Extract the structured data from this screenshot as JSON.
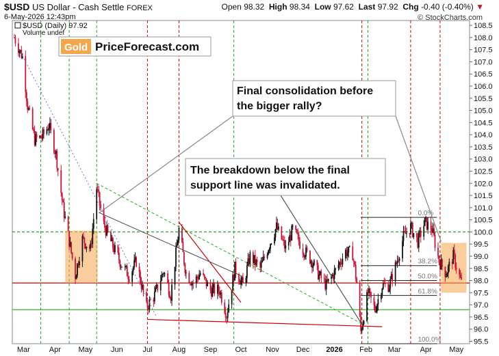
{
  "header": {
    "symbol": "$USD",
    "description": "US Dollar - Cash Settle",
    "exchange": "FOREX",
    "datetime": "6-May-2026 12:43pm",
    "open_label": "Open",
    "open": "98.32",
    "high_label": "High",
    "high": "98.34",
    "low_label": "Low",
    "low": "97.62",
    "last_label": "Last",
    "last": "97.92",
    "chg_label": "Chg",
    "chg": "-0.40 (-0.40%)",
    "brand": "© StockCharts.com"
  },
  "legend": {
    "series": "$USD (Daily) 97.92",
    "volume": "Volume undef"
  },
  "logo": {
    "gold": "Gold",
    "site": "PriceForecast.com"
  },
  "annotations": {
    "consolidation_line1": "Final consolidation before",
    "consolidation_line2": "the bigger rally?",
    "breakdown_line1": "The breakdown below the final",
    "breakdown_line2": "support line was invalidated."
  },
  "fib_labels": [
    "0.0%",
    "38.2%",
    "50.0%",
    "61.8%",
    "100.0%"
  ],
  "colors": {
    "up": "#111111",
    "down": "#cc1133",
    "orange": "#f5a54a",
    "green_grid": "#22aa22",
    "red_grid": "#cc0000"
  },
  "chart_data": {
    "type": "candlestick",
    "title": "$USD US Dollar - Cash Settle FOREX",
    "series_name": "$USD (Daily)",
    "ylim": [
      95.4,
      108.7
    ],
    "y_ticks": [
      "108.5",
      "108.0",
      "107.5",
      "107.0",
      "106.5",
      "106.0",
      "105.5",
      "105.0",
      "104.5",
      "104.0",
      "103.5",
      "103.0",
      "102.5",
      "102.0",
      "101.5",
      "101.0",
      "100.5",
      "100.0",
      "99.5",
      "99.0",
      "98.5",
      "98.0",
      "97.5",
      "97.0",
      "96.5",
      "96.0",
      "95.5"
    ],
    "x_ticks": [
      "Mar",
      "Apr",
      "May",
      "Jun",
      "Jul",
      "Aug",
      "Sep",
      "Oct",
      "Nov",
      "Dec",
      "2026",
      "Feb",
      "Mar",
      "Apr",
      "May"
    ],
    "price_path": [
      [
        "2025-02-20",
        108.0
      ],
      [
        "2025-02-28",
        107.2
      ],
      [
        "2025-03-05",
        105.2
      ],
      [
        "2025-03-12",
        103.8
      ],
      [
        "2025-03-19",
        103.9
      ],
      [
        "2025-03-26",
        104.4
      ],
      [
        "2025-04-02",
        103.2
      ],
      [
        "2025-04-09",
        101.0
      ],
      [
        "2025-04-16",
        99.4
      ],
      [
        "2025-04-21",
        98.2
      ],
      [
        "2025-04-28",
        99.7
      ],
      [
        "2025-05-06",
        99.3
      ],
      [
        "2025-05-12",
        101.8
      ],
      [
        "2025-05-19",
        100.3
      ],
      [
        "2025-05-28",
        99.4
      ],
      [
        "2025-06-05",
        98.7
      ],
      [
        "2025-06-13",
        98.2
      ],
      [
        "2025-06-20",
        98.8
      ],
      [
        "2025-06-30",
        96.9
      ],
      [
        "2025-07-08",
        97.4
      ],
      [
        "2025-07-17",
        98.4
      ],
      [
        "2025-07-24",
        97.4
      ],
      [
        "2025-08-01",
        100.1
      ],
      [
        "2025-08-08",
        98.3
      ],
      [
        "2025-08-15",
        97.9
      ],
      [
        "2025-08-22",
        98.3
      ],
      [
        "2025-09-01",
        97.6
      ],
      [
        "2025-09-10",
        97.6
      ],
      [
        "2025-09-17",
        96.6
      ],
      [
        "2025-09-25",
        98.5
      ],
      [
        "2025-10-03",
        97.8
      ],
      [
        "2025-10-10",
        99.0
      ],
      [
        "2025-10-20",
        98.5
      ],
      [
        "2025-10-31",
        99.7
      ],
      [
        "2025-11-05",
        100.2
      ],
      [
        "2025-11-14",
        99.3
      ],
      [
        "2025-11-21",
        100.1
      ],
      [
        "2025-12-01",
        99.3
      ],
      [
        "2025-12-10",
        98.8
      ],
      [
        "2025-12-17",
        98.2
      ],
      [
        "2025-12-24",
        97.8
      ],
      [
        "2026-01-02",
        98.4
      ],
      [
        "2026-01-12",
        99.2
      ],
      [
        "2026-01-19",
        99.1
      ],
      [
        "2026-01-23",
        97.9
      ],
      [
        "2026-01-27",
        95.9
      ],
      [
        "2026-02-03",
        97.5
      ],
      [
        "2026-02-10",
        96.8
      ],
      [
        "2026-02-17",
        97.8
      ],
      [
        "2026-02-24",
        97.8
      ],
      [
        "2026-03-03",
        98.7
      ],
      [
        "2026-03-10",
        99.8
      ],
      [
        "2026-03-17",
        100.2
      ],
      [
        "2026-03-24",
        99.6
      ],
      [
        "2026-03-31",
        100.4
      ],
      [
        "2026-04-07",
        100.1
      ],
      [
        "2026-04-14",
        98.8
      ],
      [
        "2026-04-21",
        98.3
      ],
      [
        "2026-04-28",
        99.0
      ],
      [
        "2026-05-06",
        97.9
      ]
    ],
    "horizontal_lines": [
      {
        "value": 100.0,
        "color": "green",
        "style": "dashed"
      },
      {
        "value": 96.8,
        "color": "green",
        "style": "solid"
      },
      {
        "value": 97.9,
        "color": "red",
        "style": "solid"
      }
    ],
    "fibonacci": {
      "high": 100.6,
      "low": 95.4,
      "levels": [
        0.0,
        38.2,
        50.0,
        61.8,
        100.0
      ]
    }
  }
}
